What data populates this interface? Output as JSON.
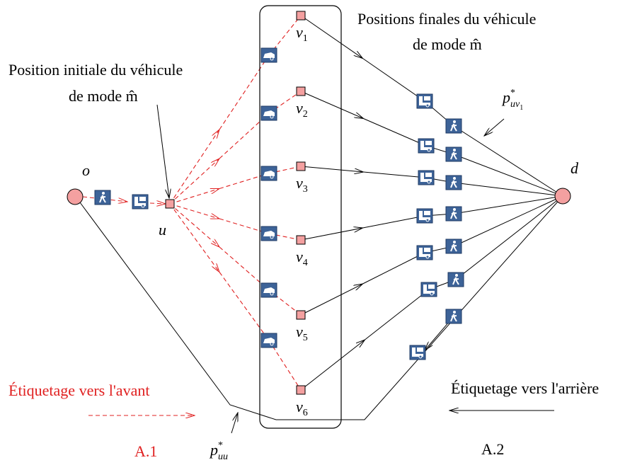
{
  "label_initial": [
    "Position initiale du véhicule",
    "de mode m̂"
  ],
  "label_final": [
    "Positions finales du véhicule",
    "de mode m̂"
  ],
  "nodes": {
    "origin": "o",
    "start": "u",
    "destination": "d"
  },
  "final_positions": [
    {
      "base": "v",
      "sub": "1"
    },
    {
      "base": "v",
      "sub": "2"
    },
    {
      "base": "v",
      "sub": "3"
    },
    {
      "base": "v",
      "sub": "4"
    },
    {
      "base": "v",
      "sub": "5"
    },
    {
      "base": "v",
      "sub": "6"
    }
  ],
  "path_uv1": {
    "base": "p",
    "sup": "*",
    "sub": "uv",
    "subsub": "1"
  },
  "path_uu": {
    "base": "p",
    "sup": "*",
    "sub": "uu"
  },
  "forward": {
    "label": "Étiquetage vers l'avant",
    "step": "A.1"
  },
  "backward": {
    "label": "Étiquetage vers l'arrière",
    "step": "A.2"
  }
}
